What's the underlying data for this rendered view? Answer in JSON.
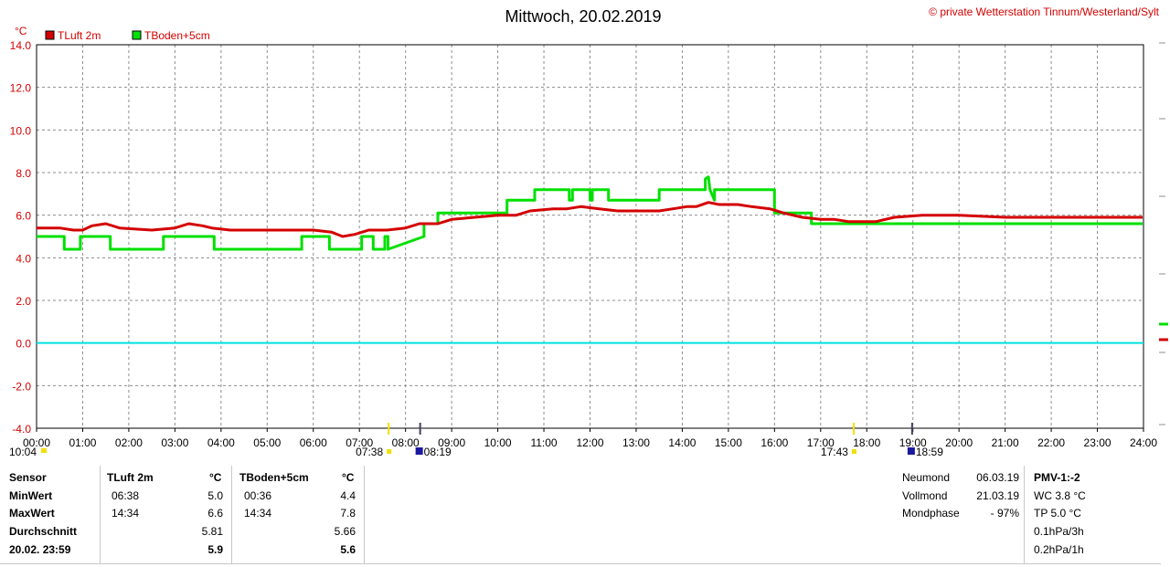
{
  "chart_data": {
    "type": "line",
    "title": "Mittwoch, 20.02.2019",
    "credit": "© private Wetterstation Tinnum/Westerland/Sylt",
    "ylabel": "°C",
    "ylim": [
      -4,
      14
    ],
    "yticks": [
      "14.0",
      "12.0",
      "10.0",
      "8.0",
      "6.0",
      "4.0",
      "2.0",
      "0.0",
      "-2.0",
      "-4.0"
    ],
    "xticks": [
      "00:00",
      "01:00",
      "02:00",
      "03:00",
      "04:00",
      "05:00",
      "06:00",
      "07:00",
      "08:00",
      "09:00",
      "10:00",
      "11:00",
      "12:00",
      "13:00",
      "14:00",
      "15:00",
      "16:00",
      "17:00",
      "18:00",
      "19:00",
      "20:00",
      "21:00",
      "22:00",
      "23:00",
      "24:00"
    ],
    "grid": true,
    "legend_position": "top-left",
    "zero_line_color": "#00e0e0",
    "series": [
      {
        "name": "TLuft 2m",
        "color": "#d40000",
        "x": [
          0,
          0.5,
          0.8,
          1.0,
          1.2,
          1.5,
          1.8,
          2.5,
          3.0,
          3.3,
          3.6,
          3.8,
          4.2,
          4.6,
          5.0,
          5.5,
          6.0,
          6.4,
          6.638,
          6.9,
          7.2,
          7.6,
          8.0,
          8.3,
          8.7,
          9.0,
          9.5,
          10.0,
          10.4,
          10.7,
          11.2,
          11.5,
          11.8,
          12.2,
          12.6,
          13.0,
          13.5,
          13.8,
          14.1,
          14.3,
          14.567,
          14.8,
          15.2,
          15.5,
          15.9,
          16.2,
          16.6,
          17.0,
          17.3,
          17.6,
          17.9,
          18.2,
          18.6,
          19.2,
          20.0,
          21.0,
          22.0,
          23.0,
          23.98
        ],
        "values": [
          5.4,
          5.4,
          5.3,
          5.3,
          5.5,
          5.6,
          5.4,
          5.3,
          5.4,
          5.6,
          5.5,
          5.4,
          5.3,
          5.3,
          5.3,
          5.3,
          5.3,
          5.2,
          5.0,
          5.1,
          5.3,
          5.3,
          5.4,
          5.6,
          5.6,
          5.8,
          5.9,
          6.0,
          6.0,
          6.2,
          6.3,
          6.3,
          6.4,
          6.3,
          6.2,
          6.2,
          6.2,
          6.3,
          6.4,
          6.4,
          6.6,
          6.5,
          6.5,
          6.4,
          6.3,
          6.1,
          5.9,
          5.8,
          5.8,
          5.7,
          5.7,
          5.7,
          5.9,
          6.0,
          6.0,
          5.9,
          5.9,
          5.9,
          5.9
        ]
      },
      {
        "name": "TBoden+5cm",
        "color": "#00e000",
        "x": [
          0,
          0.6,
          0.6,
          0.95,
          0.95,
          1.6,
          1.6,
          2.75,
          2.75,
          3.85,
          3.85,
          5.75,
          5.75,
          6.35,
          6.35,
          7.05,
          7.05,
          7.3,
          7.3,
          7.55,
          7.55,
          7.62,
          7.62,
          8.4,
          8.4,
          8.7,
          8.7,
          10.2,
          10.2,
          10.8,
          10.8,
          11.55,
          11.55,
          11.62,
          11.62,
          12.0,
          12.0,
          12.05,
          12.05,
          12.4,
          12.4,
          13.5,
          13.5,
          13.55,
          13.55,
          14.5,
          14.5,
          14.567,
          14.6,
          14.6,
          14.7,
          14.7,
          16.0,
          16.0,
          16.8,
          16.8,
          23.98
        ],
        "values": [
          5.0,
          5.0,
          4.4,
          4.4,
          5.0,
          5.0,
          4.4,
          4.4,
          5.0,
          5.0,
          4.4,
          4.4,
          5.0,
          5.0,
          4.4,
          4.4,
          5.0,
          5.0,
          4.4,
          4.4,
          5.0,
          5.0,
          4.4,
          5.0,
          5.6,
          5.6,
          6.1,
          6.1,
          6.7,
          6.7,
          7.2,
          7.2,
          6.7,
          6.7,
          7.2,
          7.2,
          6.7,
          6.7,
          7.2,
          7.2,
          6.7,
          6.7,
          7.2,
          7.2,
          7.2,
          7.2,
          7.7,
          7.8,
          7.2,
          7.2,
          6.7,
          7.2,
          7.2,
          6.1,
          6.1,
          5.6,
          5.6
        ]
      }
    ],
    "event_markers": [
      "07:38",
      "08:19",
      "17:43",
      "18:59"
    ],
    "corner_time": "10:04"
  },
  "stats_table": {
    "col_sensor_header": "Sensor",
    "row_labels": [
      "MinWert",
      "MaxWert",
      "Durchschnitt",
      "20.02. 23:59"
    ],
    "sensors": [
      {
        "name": "TLuft 2m",
        "unit": "°C",
        "min_time": "06:38",
        "min": "5.0",
        "max_time": "14:34",
        "max": "6.6",
        "avg": "5.81",
        "last": "5.9"
      },
      {
        "name": "TBoden+5cm",
        "unit": "°C",
        "min_time": "00:36",
        "min": "4.4",
        "max_time": "14:34",
        "max": "7.8",
        "avg": "5.66",
        "last": "5.6"
      }
    ]
  },
  "moon": {
    "rows": [
      {
        "label": "Neumond",
        "value": "06.03.19"
      },
      {
        "label": "Vollmond",
        "value": "21.03.19"
      },
      {
        "label": "Mondphase",
        "value": "- 97%"
      }
    ]
  },
  "weather_index": {
    "title": "PMV-1:-2",
    "lines": [
      "WC 3.8 °C",
      "TP 5.0 °C",
      "0.1hPa/3h",
      "0.2hPa/1h"
    ]
  }
}
